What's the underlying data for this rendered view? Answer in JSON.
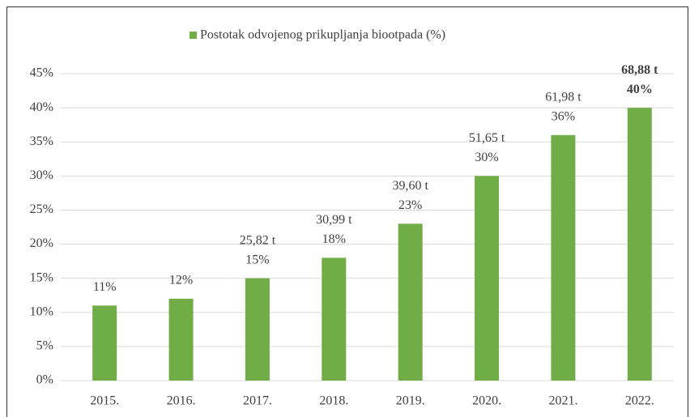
{
  "chart_data": {
    "type": "bar",
    "legend": "Postotak odvojenog prikupljanja biootpada (%)",
    "categories": [
      "2015.",
      "2016.",
      "2017.",
      "2018.",
      "2019.",
      "2020.",
      "2021.",
      "2022."
    ],
    "values": [
      11,
      12,
      15,
      18,
      23,
      30,
      36,
      40
    ],
    "value_labels": [
      "11%",
      "12%",
      "15%",
      "18%",
      "23%",
      "30%",
      "36%",
      "40%"
    ],
    "tonnage_labels": [
      null,
      null,
      "25,82 t",
      "30,99 t",
      "39,60 t",
      "51,65 t",
      "61,98 t",
      "68,88 t"
    ],
    "bold_index": 7,
    "color": "#70ad47",
    "ylim": [
      0,
      45
    ],
    "yticks": [
      {
        "value": 0,
        "label": "0%"
      },
      {
        "value": 5,
        "label": "5%"
      },
      {
        "value": 10,
        "label": "10%"
      },
      {
        "value": 15,
        "label": "15%"
      },
      {
        "value": 20,
        "label": "20%"
      },
      {
        "value": 25,
        "label": "25%"
      },
      {
        "value": 30,
        "label": "30%"
      },
      {
        "value": 35,
        "label": "35%"
      },
      {
        "value": 40,
        "label": "40%"
      },
      {
        "value": 45,
        "label": "45%"
      }
    ],
    "grid": true
  }
}
